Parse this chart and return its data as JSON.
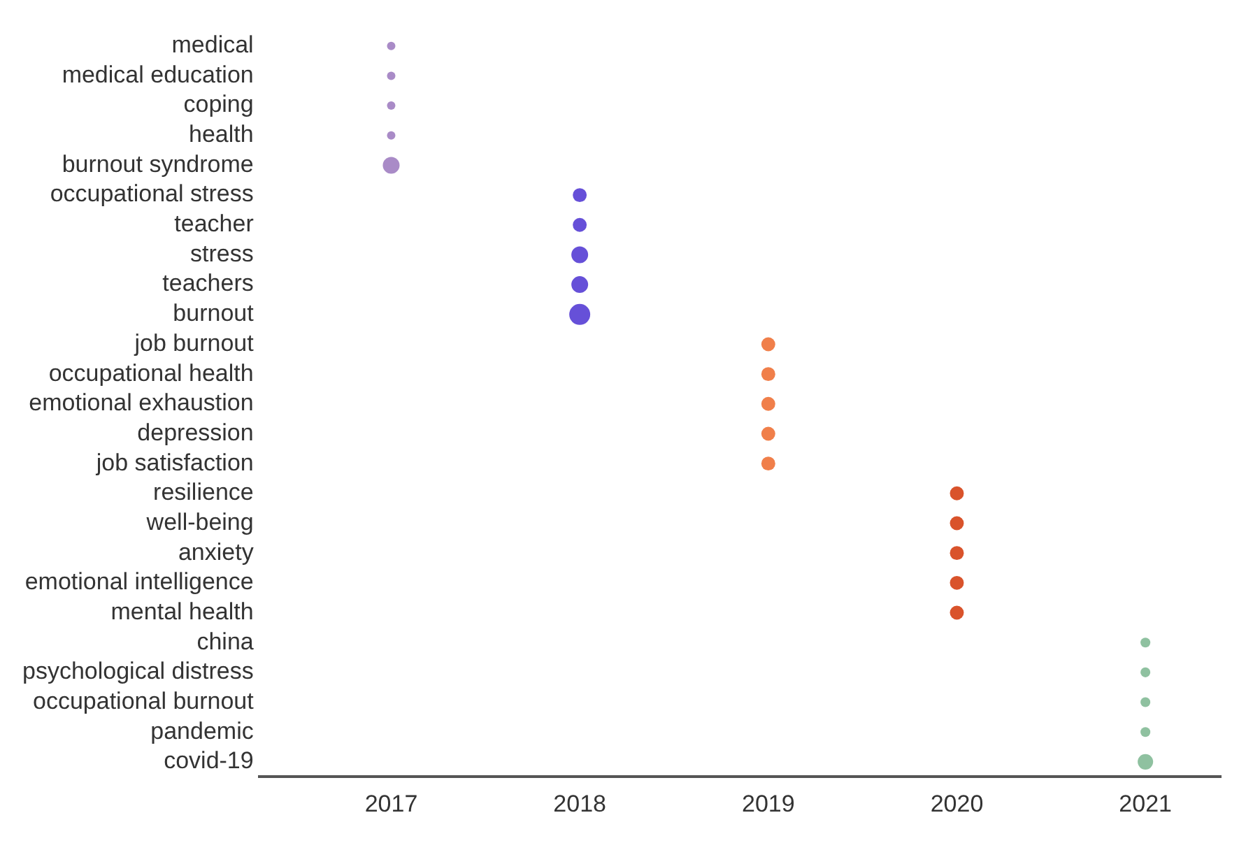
{
  "chart_data": {
    "type": "bubble",
    "orientation": "horizontal",
    "categories": [
      "medical",
      "medical education",
      "coping",
      "health",
      "burnout syndrome",
      "occupational stress",
      "teacher",
      "stress",
      "teachers",
      "burnout",
      "job burnout",
      "occupational health",
      "emotional exhaustion",
      "depression",
      "job satisfaction",
      "resilience",
      "well-being",
      "anxiety",
      "emotional intelligence",
      "mental health",
      "china",
      "psychological distress",
      "occupational burnout",
      "pandemic",
      "covid-19"
    ],
    "values": [
      2017,
      2017,
      2017,
      2017,
      2017,
      2018,
      2018,
      2018,
      2018,
      2018,
      2019,
      2019,
      2019,
      2019,
      2019,
      2020,
      2020,
      2020,
      2020,
      2020,
      2021,
      2021,
      2021,
      2021,
      2021
    ],
    "sizes": [
      0.16,
      0.16,
      0.16,
      0.16,
      0.64,
      0.44,
      0.44,
      0.64,
      0.64,
      1,
      0.44,
      0.44,
      0.44,
      0.44,
      0.44,
      0.44,
      0.44,
      0.44,
      0.44,
      0.44,
      0.22,
      0.22,
      0.22,
      0.22,
      0.54
    ],
    "colors": [
      "#a98bc7",
      "#a98bc7",
      "#a98bc7",
      "#a98bc7",
      "#a98bc7",
      "#6650d8",
      "#6650d8",
      "#6650d8",
      "#6650d8",
      "#6650d8",
      "#f07f4a",
      "#f07f4a",
      "#f07f4a",
      "#f07f4a",
      "#f07f4a",
      "#d9532b",
      "#d9532b",
      "#d9532b",
      "#d9532b",
      "#d9532b",
      "#8fc1a0",
      "#8fc1a0",
      "#8fc1a0",
      "#8fc1a0",
      "#8fc1a0"
    ],
    "xlim": [
      2016.3,
      2021.4
    ],
    "xticks": [
      2017,
      2018,
      2019,
      2020,
      2021
    ],
    "grid": false,
    "legend": false
  }
}
